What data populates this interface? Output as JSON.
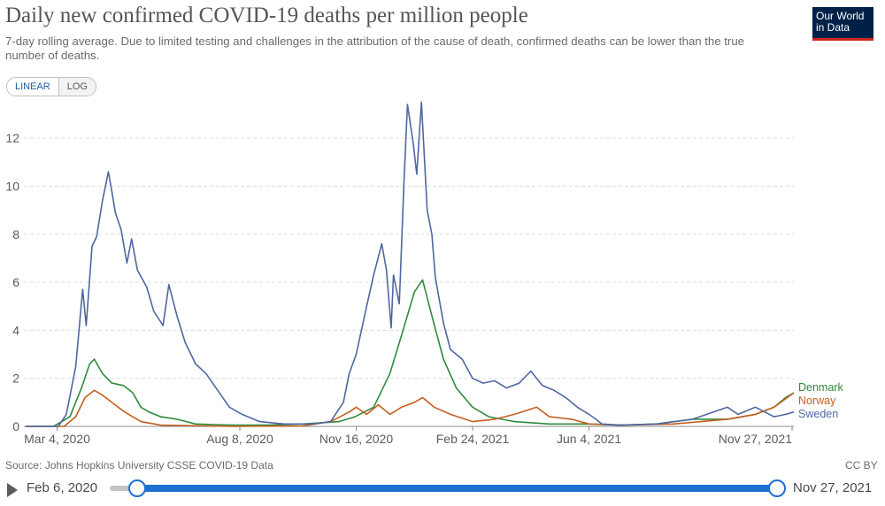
{
  "header": {
    "title": "Daily new confirmed COVID-19 deaths per million people",
    "subtitle": "7-day rolling average. Due to limited testing and challenges in the attribution of the cause of death, confirmed deaths can be lower than the true number of deaths.",
    "logo_line1": "Our World",
    "logo_line2": "in Data"
  },
  "controls": {
    "linear_label": "LINEAR",
    "log_label": "LOG",
    "selected_scale": "LINEAR"
  },
  "footer": {
    "source": "Source: Johns Hopkins University CSSE COVID-19 Data",
    "license": "CC BY"
  },
  "timeline": {
    "start_label": "Feb 6, 2020",
    "end_label": "Nov 27, 2021"
  },
  "colors": {
    "Denmark": "#2e8b3c",
    "Norway": "#c4601e",
    "Sweden": "#4f67a0",
    "grid": "#dddddd",
    "accent": "#1f6fd1"
  },
  "chart_data": {
    "type": "line",
    "title": "Daily new confirmed COVID-19 deaths per million people",
    "subtitle": "7-day rolling average. Due to limited testing and challenges in the attribution of the cause of death, confirmed deaths can be lower than the true number of deaths.",
    "x_ticks": [
      "Mar 4, 2020",
      "Aug 8, 2020",
      "Nov 16, 2020",
      "Feb 24, 2021",
      "Jun 4, 2021",
      "Nov 27, 2021"
    ],
    "x_range": [
      "2020-02-06",
      "2021-11-27"
    ],
    "y_ticks": [
      0,
      2,
      4,
      6,
      8,
      10,
      12
    ],
    "ylim": [
      0,
      13.7
    ],
    "grid": true,
    "legend": "right-end labels",
    "series": [
      {
        "name": "Denmark",
        "points": [
          [
            "2020-02-06",
            0
          ],
          [
            "2020-03-01",
            0
          ],
          [
            "2020-03-15",
            0.4
          ],
          [
            "2020-03-25",
            1.6
          ],
          [
            "2020-04-01",
            2.6
          ],
          [
            "2020-04-05",
            2.8
          ],
          [
            "2020-04-12",
            2.2
          ],
          [
            "2020-04-20",
            1.8
          ],
          [
            "2020-04-30",
            1.7
          ],
          [
            "2020-05-08",
            1.4
          ],
          [
            "2020-05-15",
            0.8
          ],
          [
            "2020-05-22",
            0.6
          ],
          [
            "2020-06-01",
            0.4
          ],
          [
            "2020-06-15",
            0.3
          ],
          [
            "2020-07-01",
            0.1
          ],
          [
            "2020-08-01",
            0.05
          ],
          [
            "2020-09-01",
            0.05
          ],
          [
            "2020-10-01",
            0.1
          ],
          [
            "2020-11-01",
            0.2
          ],
          [
            "2020-11-15",
            0.4
          ],
          [
            "2020-12-01",
            0.8
          ],
          [
            "2020-12-15",
            2.2
          ],
          [
            "2020-12-25",
            3.8
          ],
          [
            "2021-01-05",
            5.6
          ],
          [
            "2021-01-12",
            6.1
          ],
          [
            "2021-01-20",
            4.6
          ],
          [
            "2021-01-30",
            2.8
          ],
          [
            "2021-02-10",
            1.6
          ],
          [
            "2021-02-24",
            0.8
          ],
          [
            "2021-03-10",
            0.4
          ],
          [
            "2021-04-01",
            0.2
          ],
          [
            "2021-05-01",
            0.1
          ],
          [
            "2021-06-04",
            0.1
          ],
          [
            "2021-07-01",
            0.05
          ],
          [
            "2021-08-01",
            0.1
          ],
          [
            "2021-09-01",
            0.3
          ],
          [
            "2021-10-01",
            0.3
          ],
          [
            "2021-10-25",
            0.5
          ],
          [
            "2021-11-10",
            0.8
          ],
          [
            "2021-11-20",
            1.2
          ],
          [
            "2021-11-27",
            1.4
          ]
        ]
      },
      {
        "name": "Norway",
        "points": [
          [
            "2020-02-06",
            0
          ],
          [
            "2020-03-10",
            0
          ],
          [
            "2020-03-20",
            0.4
          ],
          [
            "2020-03-28",
            1.2
          ],
          [
            "2020-04-05",
            1.5
          ],
          [
            "2020-04-12",
            1.3
          ],
          [
            "2020-04-20",
            1.0
          ],
          [
            "2020-05-01",
            0.6
          ],
          [
            "2020-05-15",
            0.2
          ],
          [
            "2020-06-01",
            0.05
          ],
          [
            "2020-08-01",
            0
          ],
          [
            "2020-10-01",
            0.02
          ],
          [
            "2020-10-25",
            0.2
          ],
          [
            "2020-11-10",
            0.6
          ],
          [
            "2020-11-16",
            0.8
          ],
          [
            "2020-11-25",
            0.5
          ],
          [
            "2020-12-05",
            0.9
          ],
          [
            "2020-12-15",
            0.5
          ],
          [
            "2020-12-25",
            0.8
          ],
          [
            "2021-01-05",
            1.0
          ],
          [
            "2021-01-12",
            1.2
          ],
          [
            "2021-01-22",
            0.8
          ],
          [
            "2021-02-05",
            0.5
          ],
          [
            "2021-02-24",
            0.2
          ],
          [
            "2021-03-15",
            0.3
          ],
          [
            "2021-04-01",
            0.5
          ],
          [
            "2021-04-20",
            0.8
          ],
          [
            "2021-05-01",
            0.4
          ],
          [
            "2021-05-20",
            0.3
          ],
          [
            "2021-06-04",
            0.1
          ],
          [
            "2021-07-01",
            0.05
          ],
          [
            "2021-08-15",
            0.1
          ],
          [
            "2021-10-01",
            0.3
          ],
          [
            "2021-10-25",
            0.5
          ],
          [
            "2021-11-10",
            0.8
          ],
          [
            "2021-11-27",
            1.4
          ]
        ]
      },
      {
        "name": "Sweden",
        "points": [
          [
            "2020-02-06",
            0
          ],
          [
            "2020-03-05",
            0
          ],
          [
            "2020-03-12",
            0.5
          ],
          [
            "2020-03-20",
            2.5
          ],
          [
            "2020-03-26",
            5.7
          ],
          [
            "2020-03-29",
            4.2
          ],
          [
            "2020-04-03",
            7.5
          ],
          [
            "2020-04-07",
            7.9
          ],
          [
            "2020-04-12",
            9.4
          ],
          [
            "2020-04-15",
            10.1
          ],
          [
            "2020-04-17",
            10.6
          ],
          [
            "2020-04-20",
            9.8
          ],
          [
            "2020-04-23",
            8.9
          ],
          [
            "2020-04-28",
            8.2
          ],
          [
            "2020-05-03",
            6.8
          ],
          [
            "2020-05-07",
            7.8
          ],
          [
            "2020-05-12",
            6.5
          ],
          [
            "2020-05-20",
            5.8
          ],
          [
            "2020-05-26",
            4.8
          ],
          [
            "2020-06-03",
            4.2
          ],
          [
            "2020-06-08",
            5.9
          ],
          [
            "2020-06-15",
            4.6
          ],
          [
            "2020-06-22",
            3.5
          ],
          [
            "2020-07-01",
            2.6
          ],
          [
            "2020-07-10",
            2.2
          ],
          [
            "2020-07-20",
            1.5
          ],
          [
            "2020-07-30",
            0.8
          ],
          [
            "2020-08-10",
            0.5
          ],
          [
            "2020-08-25",
            0.2
          ],
          [
            "2020-09-15",
            0.1
          ],
          [
            "2020-10-10",
            0.1
          ],
          [
            "2020-10-25",
            0.2
          ],
          [
            "2020-11-05",
            1.0
          ],
          [
            "2020-11-10",
            2.2
          ],
          [
            "2020-11-16",
            3.0
          ],
          [
            "2020-11-25",
            5.0
          ],
          [
            "2020-12-01",
            6.3
          ],
          [
            "2020-12-08",
            7.6
          ],
          [
            "2020-12-12",
            6.5
          ],
          [
            "2020-12-16",
            4.1
          ],
          [
            "2020-12-18",
            6.3
          ],
          [
            "2020-12-23",
            5.1
          ],
          [
            "2020-12-27",
            10.1
          ],
          [
            "2020-12-30",
            13.4
          ],
          [
            "2021-01-04",
            11.8
          ],
          [
            "2021-01-07",
            10.5
          ],
          [
            "2021-01-11",
            13.5
          ],
          [
            "2021-01-16",
            9.0
          ],
          [
            "2021-01-20",
            8.0
          ],
          [
            "2021-01-23",
            6.2
          ],
          [
            "2021-01-30",
            4.3
          ],
          [
            "2021-02-05",
            3.2
          ],
          [
            "2021-02-15",
            2.8
          ],
          [
            "2021-02-24",
            2.0
          ],
          [
            "2021-03-05",
            1.8
          ],
          [
            "2021-03-15",
            1.9
          ],
          [
            "2021-03-25",
            1.6
          ],
          [
            "2021-04-05",
            1.8
          ],
          [
            "2021-04-15",
            2.3
          ],
          [
            "2021-04-25",
            1.7
          ],
          [
            "2021-05-05",
            1.5
          ],
          [
            "2021-05-15",
            1.2
          ],
          [
            "2021-05-25",
            0.8
          ],
          [
            "2021-06-04",
            0.5
          ],
          [
            "2021-06-10",
            0.3
          ],
          [
            "2021-06-15",
            0.1
          ],
          [
            "2021-07-01",
            0.05
          ],
          [
            "2021-08-01",
            0.1
          ],
          [
            "2021-09-01",
            0.3
          ],
          [
            "2021-10-01",
            0.8
          ],
          [
            "2021-10-10",
            0.5
          ],
          [
            "2021-10-25",
            0.8
          ],
          [
            "2021-11-10",
            0.4
          ],
          [
            "2021-11-20",
            0.5
          ],
          [
            "2021-11-27",
            0.6
          ]
        ]
      }
    ]
  }
}
